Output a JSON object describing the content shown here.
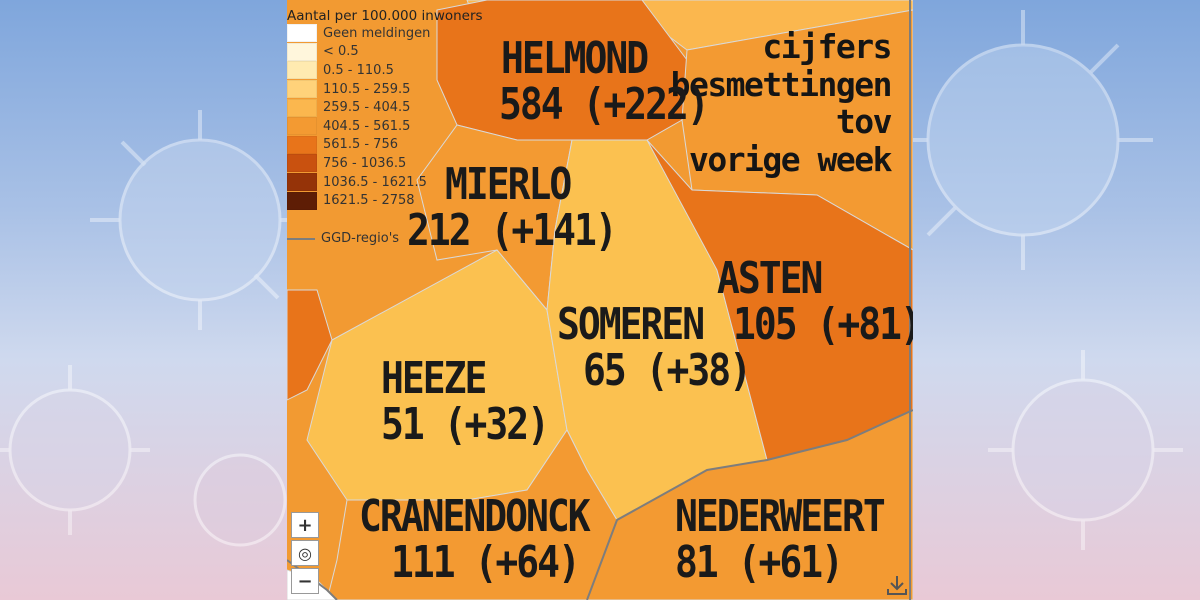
{
  "legend": {
    "title": "Aantal per 100.000 inwoners",
    "classes": [
      {
        "label": "Geen meldingen",
        "color": "#ffffff"
      },
      {
        "label": "< 0.5",
        "color": "#fff6dc"
      },
      {
        "label": "0.5 - 110.5",
        "color": "#ffeab0"
      },
      {
        "label": "110.5 - 259.5",
        "color": "#ffd27a"
      },
      {
        "label": "259.5 - 404.5",
        "color": "#fbb74e"
      },
      {
        "label": "404.5 - 561.5",
        "color": "#f39a32"
      },
      {
        "label": "561.5 - 756",
        "color": "#e8741a"
      },
      {
        "label": "756 - 1036.5",
        "color": "#c9510f"
      },
      {
        "label": "1036.5 - 1621.5",
        "color": "#953308"
      },
      {
        "label": "1621.5 - 2758",
        "color": "#5e1d05"
      }
    ],
    "region_line_label": "GGD-regio's",
    "region_line_color": "#7d7d7d"
  },
  "caption": {
    "lines": [
      "cijfers",
      "besmettingen",
      "tov",
      "vorige week"
    ]
  },
  "municipalities": [
    {
      "name": "HELMOND",
      "value": "584 (+222)",
      "color": "#e8741a"
    },
    {
      "name": "MIERLO",
      "value": "212 (+141)",
      "color": "#f39a32"
    },
    {
      "name": "ASTEN",
      "value": "105 (+81)",
      "color": "#e8741a"
    },
    {
      "name": "SOMEREN",
      "value": "65 (+38)",
      "color": "#fbc150"
    },
    {
      "name": "HEEZE",
      "value": "51 (+32)",
      "color": "#fbc150"
    },
    {
      "name": "CRANENDONCK",
      "value": "111 (+64)",
      "color": "#f39a32"
    },
    {
      "name": "NEDERWEERT",
      "value": "81 (+61)",
      "color": "#f39a32"
    }
  ],
  "controls": {
    "zoom_in": "+",
    "locate": "◎",
    "zoom_out": "−",
    "download_icon": "download-icon",
    "locate_icon": "target-icon"
  }
}
